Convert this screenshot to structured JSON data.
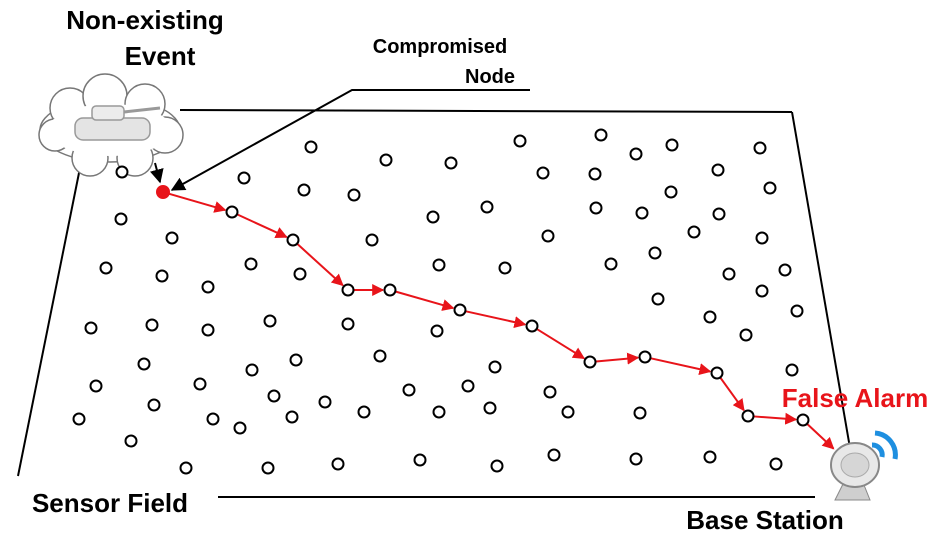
{
  "labels": {
    "event": {
      "lines": [
        "Non-existing",
        "Event"
      ]
    },
    "compromised": {
      "lines": [
        "Compromised",
        "Node"
      ]
    },
    "false_alarm": "False Alarm",
    "sensor_field": "Sensor Field",
    "base_station": "Base Station"
  }
}
